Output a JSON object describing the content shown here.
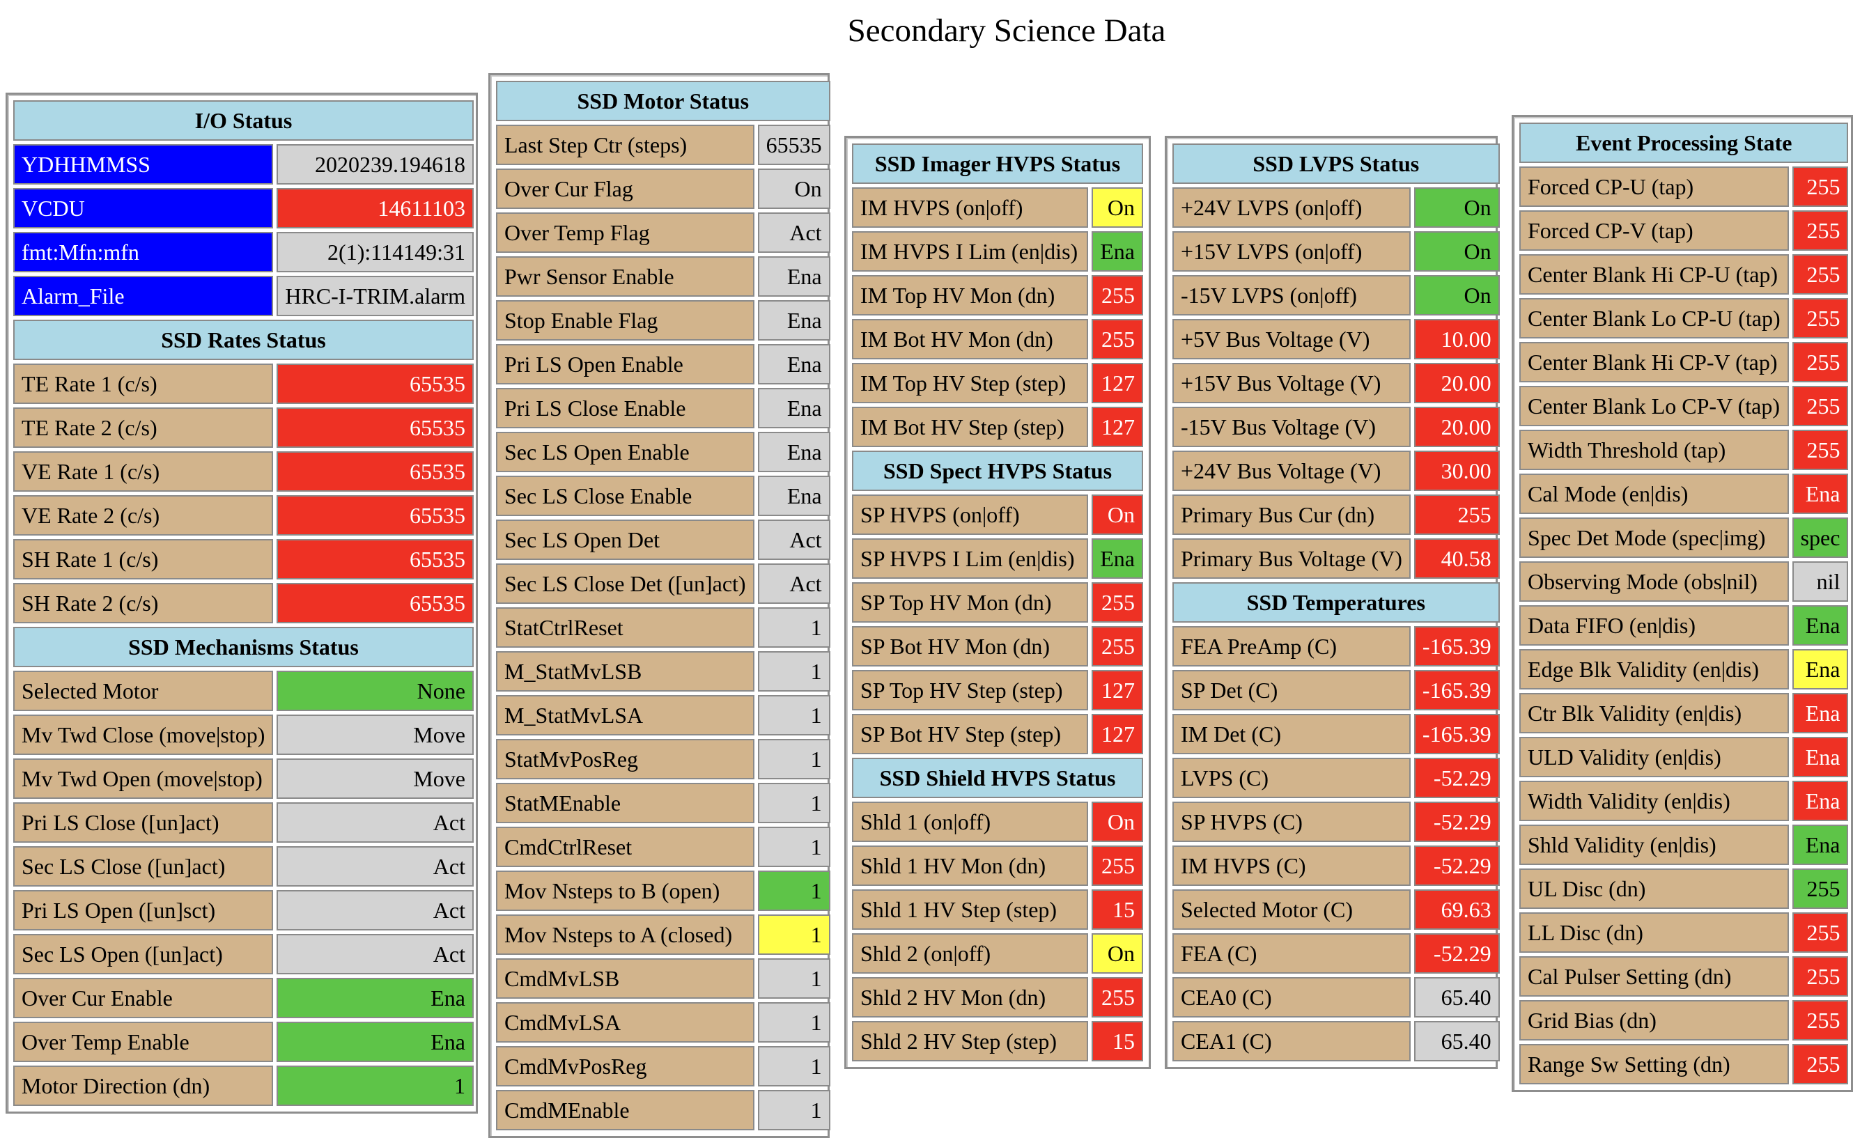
{
  "page": {
    "title": "Secondary Science Data"
  },
  "colors": {
    "header": "#add8e6",
    "label": "#d2b48c",
    "blue_label": "#0000ff",
    "neutral": "#d3d3d3",
    "alarm": "#ee3124",
    "ok": "#5ec448",
    "caution": "#ffff4a"
  },
  "panels": [
    {
      "id": "panel-io-status",
      "sections": [
        {
          "title": "I/O Status",
          "rows": [
            {
              "label": "YDHHMMSS",
              "value": "2020239.194618",
              "status": "gray",
              "label_style": "blue"
            },
            {
              "label": "VCDU",
              "value": "14611103",
              "status": "red",
              "label_style": "blue"
            },
            {
              "label": "fmt:Mfn:mfn",
              "value": "2(1):114149:31",
              "status": "gray",
              "label_style": "blue"
            },
            {
              "label": "Alarm_File",
              "value": "HRC-I-TRIM.alarm",
              "status": "gray",
              "label_style": "blue"
            }
          ]
        },
        {
          "title": "SSD Rates Status",
          "rows": [
            {
              "label": "TE Rate 1 (c/s)",
              "value": "65535",
              "status": "red"
            },
            {
              "label": "TE Rate 2 (c/s)",
              "value": "65535",
              "status": "red"
            },
            {
              "label": "VE Rate 1 (c/s)",
              "value": "65535",
              "status": "red"
            },
            {
              "label": "VE Rate 2 (c/s)",
              "value": "65535",
              "status": "red"
            },
            {
              "label": "SH Rate 1 (c/s)",
              "value": "65535",
              "status": "red"
            },
            {
              "label": "SH Rate 2 (c/s)",
              "value": "65535",
              "status": "red"
            }
          ]
        },
        {
          "title": "SSD Mechanisms Status",
          "rows": [
            {
              "label": "Selected Motor",
              "value": "None",
              "status": "green"
            },
            {
              "label": "Mv Twd Close (move|stop)",
              "value": "Move",
              "status": "gray"
            },
            {
              "label": "Mv Twd Open (move|stop)",
              "value": "Move",
              "status": "gray"
            },
            {
              "label": "Pri LS Close ([un]act)",
              "value": "Act",
              "status": "gray"
            },
            {
              "label": "Sec LS Close ([un]act)",
              "value": "Act",
              "status": "gray"
            },
            {
              "label": "Pri LS Open ([un]sct)",
              "value": "Act",
              "status": "gray"
            },
            {
              "label": "Sec LS Open ([un]act)",
              "value": "Act",
              "status": "gray"
            },
            {
              "label": "Over Cur Enable",
              "value": "Ena",
              "status": "green"
            },
            {
              "label": "Over Temp Enable",
              "value": "Ena",
              "status": "green"
            },
            {
              "label": "Motor Direction (dn)",
              "value": "1",
              "status": "green"
            }
          ]
        }
      ]
    },
    {
      "id": "panel-motor-status",
      "sections": [
        {
          "title": "SSD Motor Status",
          "rows": [
            {
              "label": "Last Step Ctr (steps)",
              "value": "65535",
              "status": "gray"
            },
            {
              "label": "Over Cur Flag",
              "value": "On",
              "status": "gray"
            },
            {
              "label": "Over Temp Flag",
              "value": "Act",
              "status": "gray"
            },
            {
              "label": "Pwr Sensor Enable",
              "value": "Ena",
              "status": "gray"
            },
            {
              "label": "Stop Enable Flag",
              "value": "Ena",
              "status": "gray"
            },
            {
              "label": "Pri LS Open Enable",
              "value": "Ena",
              "status": "gray"
            },
            {
              "label": "Pri LS Close Enable",
              "value": "Ena",
              "status": "gray"
            },
            {
              "label": "Sec LS Open Enable",
              "value": "Ena",
              "status": "gray"
            },
            {
              "label": "Sec LS Close Enable",
              "value": "Ena",
              "status": "gray"
            },
            {
              "label": "Sec LS Open Det",
              "value": "Act",
              "status": "gray"
            },
            {
              "label": "Sec LS Close Det ([un]act)",
              "value": "Act",
              "status": "gray"
            },
            {
              "label": "StatCtrlReset",
              "value": "1",
              "status": "gray"
            },
            {
              "label": "M_StatMvLSB",
              "value": "1",
              "status": "gray"
            },
            {
              "label": "M_StatMvLSA",
              "value": "1",
              "status": "gray"
            },
            {
              "label": "StatMvPosReg",
              "value": "1",
              "status": "gray"
            },
            {
              "label": "StatMEnable",
              "value": "1",
              "status": "gray"
            },
            {
              "label": "CmdCtrlReset",
              "value": "1",
              "status": "gray"
            },
            {
              "label": "Mov Nsteps to B (open)",
              "value": "1",
              "status": "green"
            },
            {
              "label": "Mov Nsteps to A (closed)",
              "value": "1",
              "status": "yellow"
            },
            {
              "label": "CmdMvLSB",
              "value": "1",
              "status": "gray"
            },
            {
              "label": "CmdMvLSA",
              "value": "1",
              "status": "gray"
            },
            {
              "label": "CmdMvPosReg",
              "value": "1",
              "status": "gray"
            },
            {
              "label": "CmdMEnable",
              "value": "1",
              "status": "gray"
            }
          ]
        }
      ]
    },
    {
      "id": "panel-hvps-status",
      "sections": [
        {
          "title": "SSD Imager HVPS Status",
          "rows": [
            {
              "label": "IM HVPS (on|off)",
              "value": "On",
              "status": "yellow"
            },
            {
              "label": "IM HVPS I Lim (en|dis)",
              "value": "Ena",
              "status": "green"
            },
            {
              "label": "IM Top HV Mon (dn)",
              "value": "255",
              "status": "red"
            },
            {
              "label": "IM Bot HV Mon (dn)",
              "value": "255",
              "status": "red"
            },
            {
              "label": "IM Top HV Step (step)",
              "value": "127",
              "status": "red"
            },
            {
              "label": "IM Bot HV Step (step)",
              "value": "127",
              "status": "red"
            }
          ]
        },
        {
          "title": "SSD Spect HVPS Status",
          "rows": [
            {
              "label": "SP HVPS (on|off)",
              "value": "On",
              "status": "red"
            },
            {
              "label": "SP HVPS I Lim (en|dis)",
              "value": "Ena",
              "status": "green"
            },
            {
              "label": "SP Top HV Mon (dn)",
              "value": "255",
              "status": "red"
            },
            {
              "label": "SP Bot HV Mon (dn)",
              "value": "255",
              "status": "red"
            },
            {
              "label": "SP Top HV Step (step)",
              "value": "127",
              "status": "red"
            },
            {
              "label": "SP Bot HV Step (step)",
              "value": "127",
              "status": "red"
            }
          ]
        },
        {
          "title": "SSD Shield HVPS Status",
          "rows": [
            {
              "label": "Shld 1 (on|off)",
              "value": "On",
              "status": "red"
            },
            {
              "label": "Shld 1 HV Mon (dn)",
              "value": "255",
              "status": "red"
            },
            {
              "label": "Shld 1 HV Step (step)",
              "value": "15",
              "status": "red"
            },
            {
              "label": "Shld 2 (on|off)",
              "value": "On",
              "status": "yellow"
            },
            {
              "label": "Shld 2 HV Mon (dn)",
              "value": "255",
              "status": "red"
            },
            {
              "label": "Shld 2 HV Step (step)",
              "value": "15",
              "status": "red"
            }
          ]
        }
      ]
    },
    {
      "id": "panel-lvps-status",
      "sections": [
        {
          "title": "SSD LVPS Status",
          "rows": [
            {
              "label": "+24V LVPS (on|off)",
              "value": "On",
              "status": "green"
            },
            {
              "label": "+15V LVPS (on|off)",
              "value": "On",
              "status": "green"
            },
            {
              "label": "-15V LVPS (on|off)",
              "value": "On",
              "status": "green"
            },
            {
              "label": "+5V Bus Voltage (V)",
              "value": "10.00",
              "status": "red"
            },
            {
              "label": "+15V Bus Voltage (V)",
              "value": "20.00",
              "status": "red"
            },
            {
              "label": "-15V Bus Voltage (V)",
              "value": "20.00",
              "status": "red"
            },
            {
              "label": "+24V Bus Voltage (V)",
              "value": "30.00",
              "status": "red"
            },
            {
              "label": "Primary Bus Cur (dn)",
              "value": "255",
              "status": "red"
            },
            {
              "label": "Primary Bus Voltage (V)",
              "value": "40.58",
              "status": "red"
            }
          ]
        },
        {
          "title": "SSD Temperatures",
          "rows": [
            {
              "label": "FEA PreAmp (C)",
              "value": "-165.39",
              "status": "red"
            },
            {
              "label": "SP Det (C)",
              "value": "-165.39",
              "status": "red"
            },
            {
              "label": "IM Det (C)",
              "value": "-165.39",
              "status": "red"
            },
            {
              "label": "LVPS (C)",
              "value": "-52.29",
              "status": "red"
            },
            {
              "label": "SP HVPS (C)",
              "value": "-52.29",
              "status": "red"
            },
            {
              "label": "IM HVPS (C)",
              "value": "-52.29",
              "status": "red"
            },
            {
              "label": "Selected Motor (C)",
              "value": "69.63",
              "status": "red"
            },
            {
              "label": "FEA (C)",
              "value": "-52.29",
              "status": "red"
            },
            {
              "label": "CEA0 (C)",
              "value": "65.40",
              "status": "gray"
            },
            {
              "label": "CEA1 (C)",
              "value": "65.40",
              "status": "gray"
            }
          ]
        }
      ]
    },
    {
      "id": "panel-event-processing",
      "sections": [
        {
          "title": "Event Processing State",
          "rows": [
            {
              "label": "Forced CP-U (tap)",
              "value": "255",
              "status": "red"
            },
            {
              "label": "Forced CP-V (tap)",
              "value": "255",
              "status": "red"
            },
            {
              "label": "Center Blank Hi CP-U (tap)",
              "value": "255",
              "status": "red"
            },
            {
              "label": "Center Blank Lo CP-U (tap)",
              "value": "255",
              "status": "red"
            },
            {
              "label": "Center Blank Hi CP-V (tap)",
              "value": "255",
              "status": "red"
            },
            {
              "label": "Center Blank Lo CP-V (tap)",
              "value": "255",
              "status": "red"
            },
            {
              "label": "Width Threshold (tap)",
              "value": "255",
              "status": "red"
            },
            {
              "label": "Cal Mode (en|dis)",
              "value": "Ena",
              "status": "red"
            },
            {
              "label": "Spec Det Mode (spec|img)",
              "value": "spec",
              "status": "green"
            },
            {
              "label": "Observing Mode (obs|nil)",
              "value": "nil",
              "status": "gray"
            },
            {
              "label": "Data FIFO (en|dis)",
              "value": "Ena",
              "status": "green"
            },
            {
              "label": "Edge Blk Validity (en|dis)",
              "value": "Ena",
              "status": "yellow"
            },
            {
              "label": "Ctr Blk Validity (en|dis)",
              "value": "Ena",
              "status": "red"
            },
            {
              "label": "ULD Validity (en|dis)",
              "value": "Ena",
              "status": "red"
            },
            {
              "label": "Width Validity (en|dis)",
              "value": "Ena",
              "status": "red"
            },
            {
              "label": "Shld Validity (en|dis)",
              "value": "Ena",
              "status": "green"
            },
            {
              "label": "UL Disc (dn)",
              "value": "255",
              "status": "green"
            },
            {
              "label": "LL Disc (dn)",
              "value": "255",
              "status": "red"
            },
            {
              "label": "Cal Pulser Setting (dn)",
              "value": "255",
              "status": "red"
            },
            {
              "label": "Grid Bias (dn)",
              "value": "255",
              "status": "red"
            },
            {
              "label": "Range Sw Setting (dn)",
              "value": "255",
              "status": "red"
            }
          ]
        }
      ]
    }
  ]
}
